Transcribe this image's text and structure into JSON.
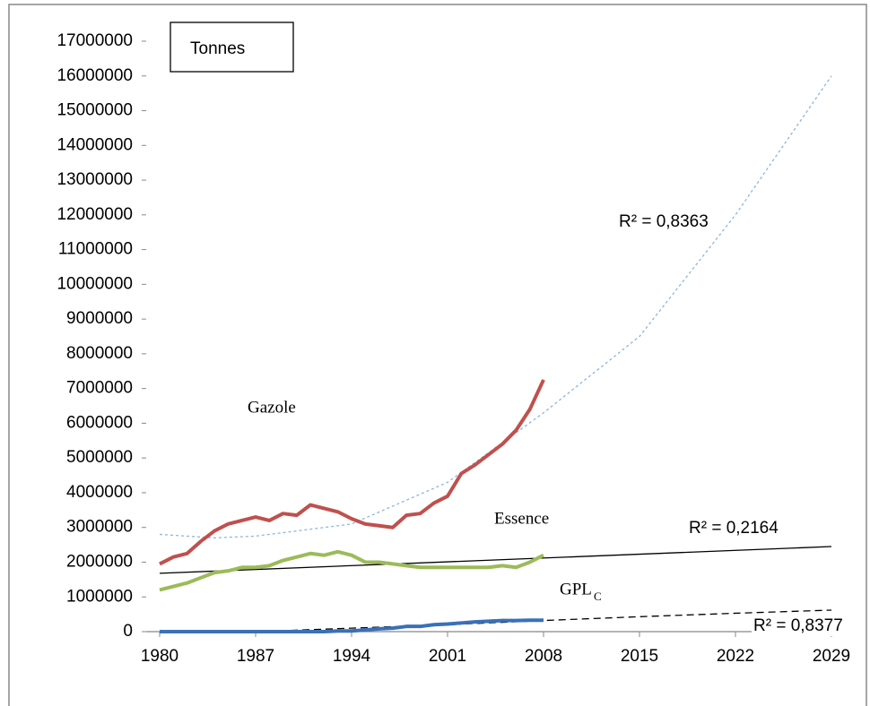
{
  "chart_data": {
    "type": "line",
    "annotation": "Tonnes",
    "x": [
      1980,
      1981,
      1982,
      1983,
      1984,
      1985,
      1986,
      1987,
      1988,
      1989,
      1990,
      1991,
      1992,
      1993,
      1994,
      1995,
      1996,
      1997,
      1998,
      1999,
      2000,
      2001,
      2002,
      2003,
      2004,
      2005,
      2006,
      2007,
      2008
    ],
    "series": [
      {
        "name": "Gazole",
        "color": "#c0504d",
        "values": [
          1950000,
          2150000,
          2250000,
          2600000,
          2900000,
          3100000,
          3200000,
          3300000,
          3200000,
          3400000,
          3350000,
          3650000,
          3550000,
          3450000,
          3250000,
          3100000,
          3050000,
          3000000,
          3350000,
          3400000,
          3700000,
          3900000,
          4550000,
          4800000,
          5100000,
          5400000,
          5800000,
          6400000,
          7250000
        ]
      },
      {
        "name": "Essence",
        "color": "#9bbb59",
        "values": [
          1200000,
          1300000,
          1400000,
          1550000,
          1700000,
          1750000,
          1850000,
          1850000,
          1900000,
          2050000,
          2150000,
          2250000,
          2200000,
          2300000,
          2200000,
          2000000,
          2000000,
          1950000,
          1900000,
          1850000,
          1850000,
          1850000,
          1850000,
          1850000,
          1850000,
          1900000,
          1850000,
          2000000,
          2200000
        ]
      },
      {
        "name": "GPL",
        "subscript": "C",
        "color": "#3a70b8",
        "values": [
          0,
          0,
          0,
          0,
          0,
          0,
          0,
          0,
          0,
          0,
          0,
          0,
          0,
          20000,
          20000,
          50000,
          80000,
          100000,
          150000,
          150000,
          200000,
          220000,
          250000,
          280000,
          300000,
          320000,
          320000,
          330000,
          330000
        ]
      }
    ],
    "trendlines": [
      {
        "label": "R² = 0,8363",
        "color": "#8db3e2",
        "dash": "3,3",
        "x": [
          1980,
          1984,
          1987,
          1994,
          2001,
          2008,
          2015,
          2022,
          2029
        ],
        "values": [
          2800000,
          2700000,
          2750000,
          3100000,
          4300000,
          6300000,
          8500000,
          12000000,
          16000000
        ]
      },
      {
        "label": "R² = 0,2164",
        "color": "#000000",
        "dash": "none",
        "x": [
          1980,
          2029
        ],
        "values": [
          1680000,
          2450000
        ]
      },
      {
        "label": "R² = 0,8377",
        "color": "#000000",
        "dash": "8,5",
        "x": [
          1987,
          1994,
          2001,
          2008,
          2015,
          2022,
          2029
        ],
        "values": [
          0,
          100000,
          200000,
          320000,
          430000,
          530000,
          620000
        ]
      }
    ],
    "xlim": [
      1980,
      2029
    ],
    "xticks": [
      1980,
      1987,
      1994,
      2001,
      2008,
      2015,
      2022,
      2029
    ],
    "ylim": [
      0,
      17000000
    ],
    "yticks": [
      0,
      1000000,
      2000000,
      3000000,
      4000000,
      5000000,
      6000000,
      7000000,
      8000000,
      9000000,
      10000000,
      11000000,
      12000000,
      13000000,
      14000000,
      15000000,
      16000000,
      17000000
    ]
  }
}
